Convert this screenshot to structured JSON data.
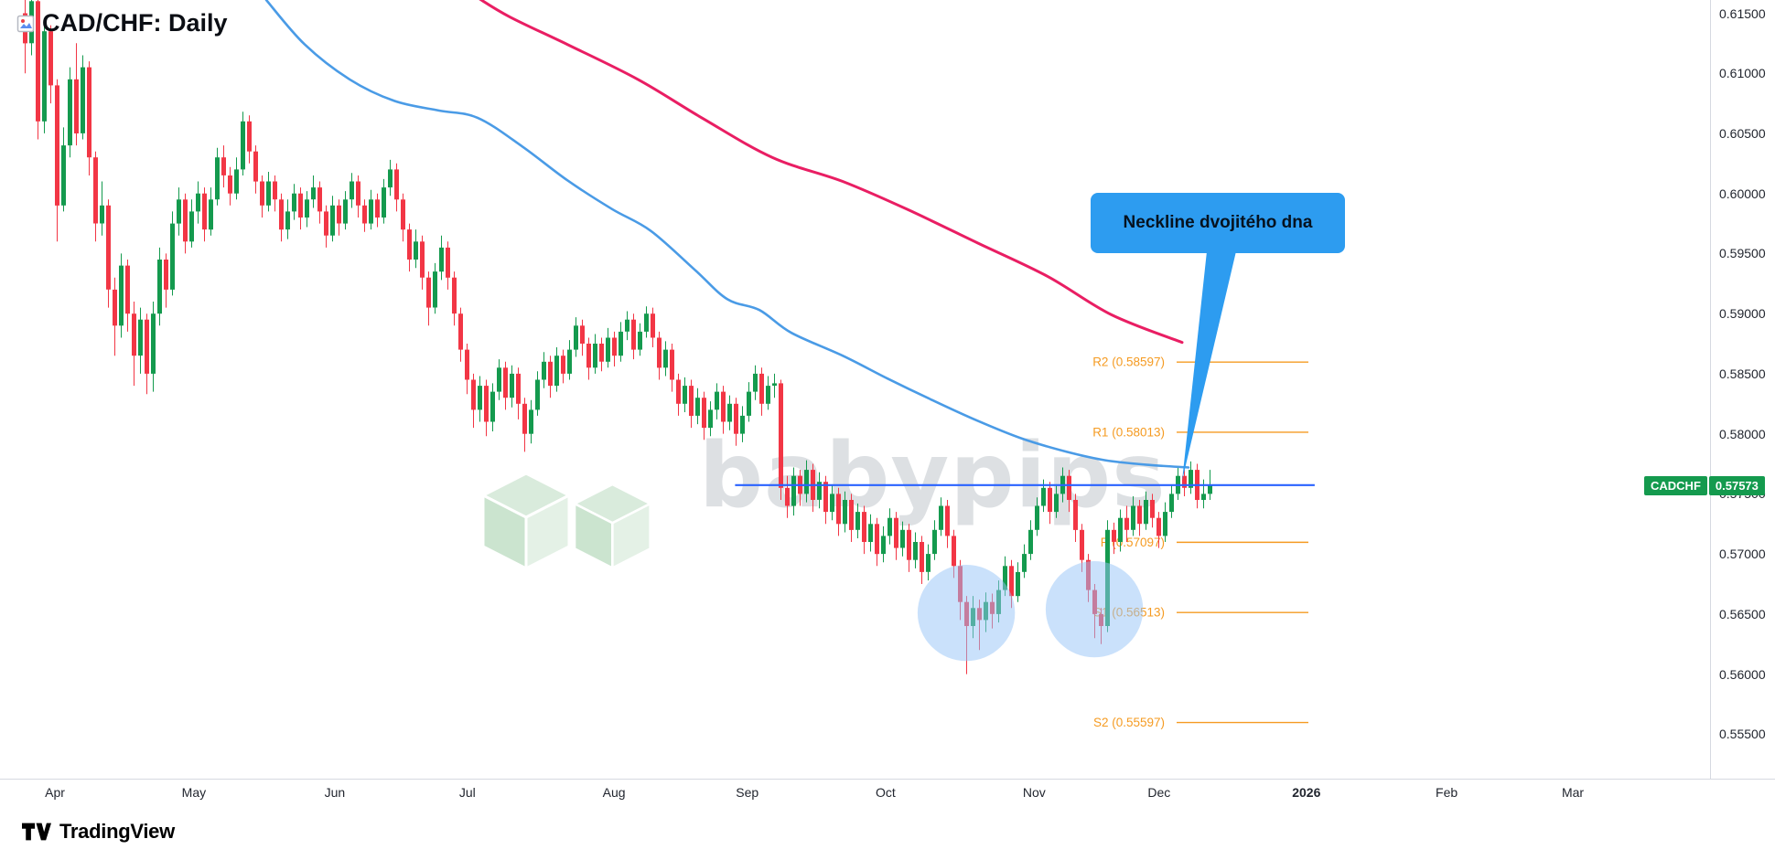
{
  "header": {
    "title": "CAD/CHF: Daily"
  },
  "watermark": {
    "text": "babypips"
  },
  "callout": {
    "text": "Neckline dvojitého dna"
  },
  "price_badge": {
    "symbol": "CADCHF",
    "price": "0.57573"
  },
  "footer": {
    "brand": "TradingView"
  },
  "colors": {
    "up": "#149a4e",
    "down": "#f23645",
    "ma_fast": "#4a9be6",
    "ma_slow": "#e91e63",
    "pivot": "#f59b22",
    "neckline": "#2962ff",
    "highlight": "rgba(149,196,248,0.5)",
    "callout_bg": "#2d9cf0",
    "badge_bg": "#149a4e"
  },
  "chart_data": {
    "type": "candlestick",
    "symbol": "CAD/CHF",
    "timeframe": "Daily",
    "last_price": 0.57573,
    "ylim": [
      0.5513,
      0.6161
    ],
    "y_ticks": [
      "0.61500",
      "0.61000",
      "0.60500",
      "0.60000",
      "0.59500",
      "0.59000",
      "0.58500",
      "0.58000",
      "0.57500",
      "0.57000",
      "0.56500",
      "0.56000",
      "0.55500"
    ],
    "x_ticks": [
      {
        "label": "Apr",
        "i": 5
      },
      {
        "label": "May",
        "i": 26.7
      },
      {
        "label": "Jun",
        "i": 48.7
      },
      {
        "label": "Jul",
        "i": 69.4
      },
      {
        "label": "Aug",
        "i": 92.3
      },
      {
        "label": "Sep",
        "i": 113.1
      },
      {
        "label": "Oct",
        "i": 134.7
      },
      {
        "label": "Nov",
        "i": 157.9
      },
      {
        "label": "Dec",
        "i": 177.4
      },
      {
        "label": "2026",
        "i": 200.4,
        "emph": true
      },
      {
        "label": "Feb",
        "i": 222.3
      },
      {
        "label": "Mar",
        "i": 242
      }
    ],
    "pivot_levels": [
      {
        "label": "R2 (0.58597)",
        "value": 0.58597
      },
      {
        "label": "R1 (0.58013)",
        "value": 0.58013
      },
      {
        "label": "P (0.57097)",
        "value": 0.57097
      },
      {
        "label": "S1 (0.56513)",
        "value": 0.56513
      },
      {
        "label": "S2 (0.55597)",
        "value": 0.55597
      }
    ],
    "neckline": {
      "value": 0.57573,
      "i_start": 111.2,
      "i_end": 201.7
    },
    "highlight_ellipses": [
      {
        "i": 147.3,
        "price": 0.5651,
        "ri": 7.6,
        "rp": 0.004
      },
      {
        "i": 167.3,
        "price": 0.5654,
        "ri": 7.6,
        "rp": 0.004
      }
    ],
    "ma_slow_pink": [
      [
        71,
        0.6163
      ],
      [
        76,
        0.6147
      ],
      [
        85,
        0.6124
      ],
      [
        96,
        0.6095
      ],
      [
        106,
        0.6063
      ],
      [
        117,
        0.603
      ],
      [
        128,
        0.601
      ],
      [
        138,
        0.5987
      ],
      [
        149,
        0.5959
      ],
      [
        160,
        0.5931
      ],
      [
        170,
        0.5899
      ],
      [
        181,
        0.5876
      ]
    ],
    "ma_fast_blue": [
      [
        38,
        0.6161
      ],
      [
        44,
        0.6124
      ],
      [
        51,
        0.6095
      ],
      [
        58,
        0.6077
      ],
      [
        65,
        0.6069
      ],
      [
        71,
        0.6063
      ],
      [
        78,
        0.6039
      ],
      [
        85,
        0.6011
      ],
      [
        92,
        0.5987
      ],
      [
        98,
        0.5969
      ],
      [
        105,
        0.5936
      ],
      [
        110,
        0.5912
      ],
      [
        115,
        0.5903
      ],
      [
        120,
        0.5884
      ],
      [
        128,
        0.5865
      ],
      [
        135,
        0.5846
      ],
      [
        142,
        0.5828
      ],
      [
        149,
        0.5811
      ],
      [
        156,
        0.5796
      ],
      [
        163,
        0.5785
      ],
      [
        169,
        0.5778
      ],
      [
        176,
        0.5774
      ],
      [
        182,
        0.5772
      ]
    ],
    "ohlc": [
      [
        0.615,
        0.617,
        0.61,
        0.6125
      ],
      [
        0.6125,
        0.6175,
        0.6115,
        0.616
      ],
      [
        0.616,
        0.6165,
        0.6045,
        0.606
      ],
      [
        0.606,
        0.6145,
        0.605,
        0.6135
      ],
      [
        0.6135,
        0.614,
        0.6075,
        0.609
      ],
      [
        0.609,
        0.6095,
        0.596,
        0.599
      ],
      [
        0.599,
        0.6055,
        0.5985,
        0.604
      ],
      [
        0.604,
        0.6105,
        0.603,
        0.6095
      ],
      [
        0.6095,
        0.6125,
        0.604,
        0.605
      ],
      [
        0.605,
        0.6115,
        0.6045,
        0.6105
      ],
      [
        0.6105,
        0.611,
        0.6015,
        0.603
      ],
      [
        0.603,
        0.6035,
        0.596,
        0.5975
      ],
      [
        0.5975,
        0.601,
        0.5965,
        0.599
      ],
      [
        0.599,
        0.5995,
        0.5905,
        0.592
      ],
      [
        0.592,
        0.593,
        0.5865,
        0.589
      ],
      [
        0.589,
        0.595,
        0.588,
        0.594
      ],
      [
        0.594,
        0.5945,
        0.5885,
        0.59
      ],
      [
        0.59,
        0.591,
        0.584,
        0.5865
      ],
      [
        0.5865,
        0.5905,
        0.585,
        0.5895
      ],
      [
        0.5895,
        0.59,
        0.5833,
        0.585
      ],
      [
        0.585,
        0.591,
        0.5835,
        0.59
      ],
      [
        0.59,
        0.5955,
        0.589,
        0.5945
      ],
      [
        0.5945,
        0.595,
        0.5905,
        0.592
      ],
      [
        0.592,
        0.5985,
        0.5915,
        0.5975
      ],
      [
        0.5975,
        0.6005,
        0.5965,
        0.5995
      ],
      [
        0.5995,
        0.6,
        0.595,
        0.596
      ],
      [
        0.596,
        0.5995,
        0.5955,
        0.5985
      ],
      [
        0.5985,
        0.601,
        0.5975,
        0.6
      ],
      [
        0.6,
        0.6005,
        0.596,
        0.597
      ],
      [
        0.597,
        0.6005,
        0.5965,
        0.5995
      ],
      [
        0.5995,
        0.6038,
        0.599,
        0.603
      ],
      [
        0.603,
        0.604,
        0.6005,
        0.6015
      ],
      [
        0.6015,
        0.6022,
        0.599,
        0.6
      ],
      [
        0.6,
        0.603,
        0.5995,
        0.602
      ],
      [
        0.602,
        0.6068,
        0.6015,
        0.606
      ],
      [
        0.606,
        0.6065,
        0.6025,
        0.6035
      ],
      [
        0.6035,
        0.604,
        0.6,
        0.601
      ],
      [
        0.601,
        0.6015,
        0.598,
        0.599
      ],
      [
        0.599,
        0.6018,
        0.5985,
        0.601
      ],
      [
        0.601,
        0.6015,
        0.5985,
        0.5995
      ],
      [
        0.5995,
        0.6,
        0.596,
        0.597
      ],
      [
        0.597,
        0.5995,
        0.5962,
        0.5985
      ],
      [
        0.5985,
        0.6008,
        0.5978,
        0.6
      ],
      [
        0.6,
        0.6005,
        0.597,
        0.598
      ],
      [
        0.598,
        0.6002,
        0.5972,
        0.5995
      ],
      [
        0.5995,
        0.6015,
        0.5988,
        0.6005
      ],
      [
        0.6005,
        0.601,
        0.5975,
        0.5985
      ],
      [
        0.5985,
        0.599,
        0.5955,
        0.5965
      ],
      [
        0.5965,
        0.5998,
        0.596,
        0.599
      ],
      [
        0.599,
        0.5995,
        0.5965,
        0.5975
      ],
      [
        0.5975,
        0.6002,
        0.597,
        0.5995
      ],
      [
        0.5995,
        0.6017,
        0.5988,
        0.601
      ],
      [
        0.601,
        0.6015,
        0.598,
        0.599
      ],
      [
        0.599,
        0.5995,
        0.5968,
        0.5975
      ],
      [
        0.5975,
        0.6003,
        0.597,
        0.5995
      ],
      [
        0.5995,
        0.6,
        0.5972,
        0.598
      ],
      [
        0.598,
        0.6012,
        0.5975,
        0.6005
      ],
      [
        0.6005,
        0.6028,
        0.5998,
        0.602
      ],
      [
        0.602,
        0.6025,
        0.5985,
        0.5995
      ],
      [
        0.5995,
        0.6,
        0.596,
        0.597
      ],
      [
        0.597,
        0.5975,
        0.5935,
        0.5945
      ],
      [
        0.5945,
        0.597,
        0.5938,
        0.596
      ],
      [
        0.596,
        0.5965,
        0.592,
        0.593
      ],
      [
        0.593,
        0.5935,
        0.589,
        0.5905
      ],
      [
        0.5905,
        0.5942,
        0.59,
        0.5935
      ],
      [
        0.5935,
        0.5965,
        0.5928,
        0.5955
      ],
      [
        0.5955,
        0.596,
        0.592,
        0.593
      ],
      [
        0.593,
        0.5935,
        0.589,
        0.59
      ],
      [
        0.59,
        0.5905,
        0.586,
        0.587
      ],
      [
        0.587,
        0.5875,
        0.5833,
        0.5845
      ],
      [
        0.5845,
        0.585,
        0.5805,
        0.582
      ],
      [
        0.582,
        0.5848,
        0.581,
        0.584
      ],
      [
        0.584,
        0.5845,
        0.5798,
        0.581
      ],
      [
        0.581,
        0.5842,
        0.5802,
        0.5835
      ],
      [
        0.5835,
        0.5862,
        0.5828,
        0.5855
      ],
      [
        0.5855,
        0.586,
        0.582,
        0.583
      ],
      [
        0.583,
        0.5857,
        0.5822,
        0.585
      ],
      [
        0.585,
        0.5855,
        0.5812,
        0.5825
      ],
      [
        0.5825,
        0.583,
        0.5785,
        0.58
      ],
      [
        0.58,
        0.5828,
        0.5792,
        0.582
      ],
      [
        0.582,
        0.5852,
        0.5815,
        0.5845
      ],
      [
        0.5845,
        0.5868,
        0.5838,
        0.586
      ],
      [
        0.586,
        0.5865,
        0.583,
        0.584
      ],
      [
        0.584,
        0.5872,
        0.5835,
        0.5865
      ],
      [
        0.5865,
        0.587,
        0.5842,
        0.585
      ],
      [
        0.585,
        0.5878,
        0.5845,
        0.587
      ],
      [
        0.587,
        0.5897,
        0.5864,
        0.589
      ],
      [
        0.589,
        0.5895,
        0.5865,
        0.5875
      ],
      [
        0.5875,
        0.588,
        0.5845,
        0.5855
      ],
      [
        0.5855,
        0.5883,
        0.585,
        0.5875
      ],
      [
        0.5875,
        0.588,
        0.5852,
        0.586
      ],
      [
        0.586,
        0.5888,
        0.5855,
        0.588
      ],
      [
        0.588,
        0.5885,
        0.5856,
        0.5865
      ],
      [
        0.5865,
        0.5893,
        0.586,
        0.5885
      ],
      [
        0.5885,
        0.5902,
        0.5878,
        0.5895
      ],
      [
        0.5895,
        0.59,
        0.5862,
        0.587
      ],
      [
        0.587,
        0.5892,
        0.5865,
        0.5885
      ],
      [
        0.5885,
        0.5906,
        0.588,
        0.59
      ],
      [
        0.59,
        0.5905,
        0.5872,
        0.588
      ],
      [
        0.588,
        0.5885,
        0.5845,
        0.5855
      ],
      [
        0.5855,
        0.5877,
        0.5848,
        0.587
      ],
      [
        0.587,
        0.5875,
        0.5835,
        0.5845
      ],
      [
        0.5845,
        0.585,
        0.5815,
        0.5825
      ],
      [
        0.5825,
        0.5847,
        0.5818,
        0.584
      ],
      [
        0.584,
        0.5845,
        0.5805,
        0.5815
      ],
      [
        0.5815,
        0.5838,
        0.5808,
        0.583
      ],
      [
        0.583,
        0.5835,
        0.5795,
        0.5805
      ],
      [
        0.5805,
        0.5827,
        0.5798,
        0.582
      ],
      [
        0.582,
        0.5842,
        0.5812,
        0.5835
      ],
      [
        0.5835,
        0.584,
        0.58,
        0.581
      ],
      [
        0.581,
        0.5832,
        0.5803,
        0.5825
      ],
      [
        0.5825,
        0.583,
        0.579,
        0.58
      ],
      [
        0.58,
        0.5823,
        0.5793,
        0.5815
      ],
      [
        0.5815,
        0.5843,
        0.581,
        0.5835
      ],
      [
        0.5835,
        0.5857,
        0.5828,
        0.585
      ],
      [
        0.585,
        0.5855,
        0.5815,
        0.5825
      ],
      [
        0.5825,
        0.5848,
        0.582,
        0.584
      ],
      [
        0.584,
        0.585,
        0.583,
        0.5842
      ],
      [
        0.5842,
        0.5845,
        0.5745,
        0.5755
      ],
      [
        0.5755,
        0.5765,
        0.573,
        0.574
      ],
      [
        0.574,
        0.5772,
        0.5732,
        0.5765
      ],
      [
        0.5765,
        0.577,
        0.574,
        0.575
      ],
      [
        0.575,
        0.5778,
        0.5743,
        0.577
      ],
      [
        0.577,
        0.5775,
        0.5735,
        0.5745
      ],
      [
        0.5745,
        0.5768,
        0.5738,
        0.576
      ],
      [
        0.576,
        0.5765,
        0.5725,
        0.5735
      ],
      [
        0.5735,
        0.5757,
        0.5728,
        0.575
      ],
      [
        0.575,
        0.5755,
        0.5715,
        0.5725
      ],
      [
        0.5725,
        0.5752,
        0.5718,
        0.5745
      ],
      [
        0.5745,
        0.575,
        0.571,
        0.572
      ],
      [
        0.572,
        0.5742,
        0.5713,
        0.5735
      ],
      [
        0.5735,
        0.574,
        0.57,
        0.571
      ],
      [
        0.571,
        0.5733,
        0.5702,
        0.5725
      ],
      [
        0.5725,
        0.573,
        0.569,
        0.57
      ],
      [
        0.57,
        0.5723,
        0.5693,
        0.5715
      ],
      [
        0.5715,
        0.5738,
        0.5708,
        0.573
      ],
      [
        0.573,
        0.5735,
        0.5695,
        0.5705
      ],
      [
        0.5705,
        0.5727,
        0.5698,
        0.572
      ],
      [
        0.572,
        0.5725,
        0.5685,
        0.5695
      ],
      [
        0.5695,
        0.5718,
        0.5688,
        0.571
      ],
      [
        0.571,
        0.5715,
        0.5675,
        0.5685
      ],
      [
        0.5685,
        0.5708,
        0.5678,
        0.57
      ],
      [
        0.57,
        0.5728,
        0.5695,
        0.572
      ],
      [
        0.572,
        0.5747,
        0.5715,
        0.574
      ],
      [
        0.574,
        0.5745,
        0.5705,
        0.5715
      ],
      [
        0.5715,
        0.572,
        0.568,
        0.569
      ],
      [
        0.569,
        0.5695,
        0.5645,
        0.566
      ],
      [
        0.566,
        0.5665,
        0.56,
        0.564
      ],
      [
        0.564,
        0.5665,
        0.563,
        0.5655
      ],
      [
        0.5655,
        0.5662,
        0.562,
        0.5645
      ],
      [
        0.5645,
        0.5668,
        0.5635,
        0.566
      ],
      [
        0.566,
        0.5667,
        0.5638,
        0.565
      ],
      [
        0.565,
        0.5678,
        0.5643,
        0.567
      ],
      [
        0.567,
        0.5698,
        0.5665,
        0.569
      ],
      [
        0.569,
        0.5695,
        0.5655,
        0.5665
      ],
      [
        0.5665,
        0.5693,
        0.566,
        0.5685
      ],
      [
        0.5685,
        0.5708,
        0.568,
        0.57
      ],
      [
        0.57,
        0.5728,
        0.5695,
        0.572
      ],
      [
        0.572,
        0.5747,
        0.5715,
        0.574
      ],
      [
        0.574,
        0.5762,
        0.5735,
        0.5755
      ],
      [
        0.5755,
        0.576,
        0.5725,
        0.5735
      ],
      [
        0.5735,
        0.5758,
        0.573,
        0.575
      ],
      [
        0.575,
        0.5772,
        0.5743,
        0.5765
      ],
      [
        0.5765,
        0.577,
        0.5735,
        0.5745
      ],
      [
        0.5745,
        0.575,
        0.571,
        0.572
      ],
      [
        0.572,
        0.5725,
        0.5685,
        0.5695
      ],
      [
        0.5695,
        0.57,
        0.566,
        0.567
      ],
      [
        0.567,
        0.5675,
        0.563,
        0.565
      ],
      [
        0.565,
        0.5655,
        0.5625,
        0.564
      ],
      [
        0.564,
        0.5728,
        0.5635,
        0.572
      ],
      [
        0.572,
        0.5726,
        0.57,
        0.571
      ],
      [
        0.571,
        0.5737,
        0.5702,
        0.573
      ],
      [
        0.573,
        0.574,
        0.571,
        0.572
      ],
      [
        0.572,
        0.5748,
        0.5715,
        0.574
      ],
      [
        0.574,
        0.5745,
        0.5715,
        0.5725
      ],
      [
        0.5725,
        0.5752,
        0.572,
        0.5745
      ],
      [
        0.5745,
        0.575,
        0.5722,
        0.573
      ],
      [
        0.573,
        0.5735,
        0.5705,
        0.5715
      ],
      [
        0.5715,
        0.5743,
        0.571,
        0.5735
      ],
      [
        0.5735,
        0.5757,
        0.573,
        0.575
      ],
      [
        0.575,
        0.5773,
        0.5745,
        0.5765
      ],
      [
        0.5765,
        0.577,
        0.5748,
        0.5755
      ],
      [
        0.5755,
        0.5777,
        0.575,
        0.577
      ],
      [
        0.577,
        0.5775,
        0.5738,
        0.5745
      ],
      [
        0.5745,
        0.5762,
        0.5738,
        0.575
      ],
      [
        0.575,
        0.577,
        0.5745,
        0.57573
      ]
    ]
  }
}
